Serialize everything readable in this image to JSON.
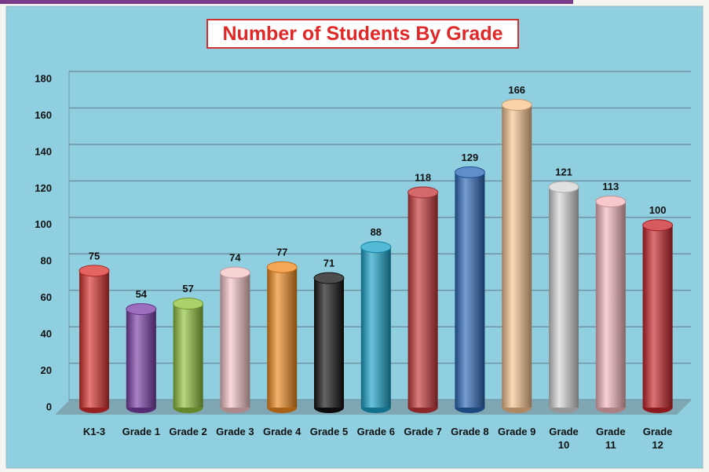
{
  "chart_data": {
    "type": "bar",
    "title": "Number of Students By Grade",
    "categories": [
      "K1-3",
      "Grade 1",
      "Grade 2",
      "Grade 3",
      "Grade 4",
      "Grade 5",
      "Grade 6",
      "Grade 7",
      "Grade 8",
      "Grade 9",
      "Grade 10",
      "Grade 11",
      "Grade 12"
    ],
    "values": [
      75,
      54,
      57,
      74,
      77,
      71,
      88,
      118,
      129,
      166,
      121,
      113,
      100
    ],
    "colors": [
      "#d9302c",
      "#7b3fa8",
      "#8fc23a",
      "#f6c4c6",
      "#f08a1e",
      "#111111",
      "#1aa3c8",
      "#c6373a",
      "#2a68b8",
      "#f8c48e",
      "#d6d6d6",
      "#f6b6bb",
      "#c8242a"
    ],
    "ylim": [
      0,
      180
    ],
    "yticks": [
      0,
      20,
      40,
      60,
      80,
      100,
      120,
      140,
      160,
      180
    ],
    "grid": true
  }
}
